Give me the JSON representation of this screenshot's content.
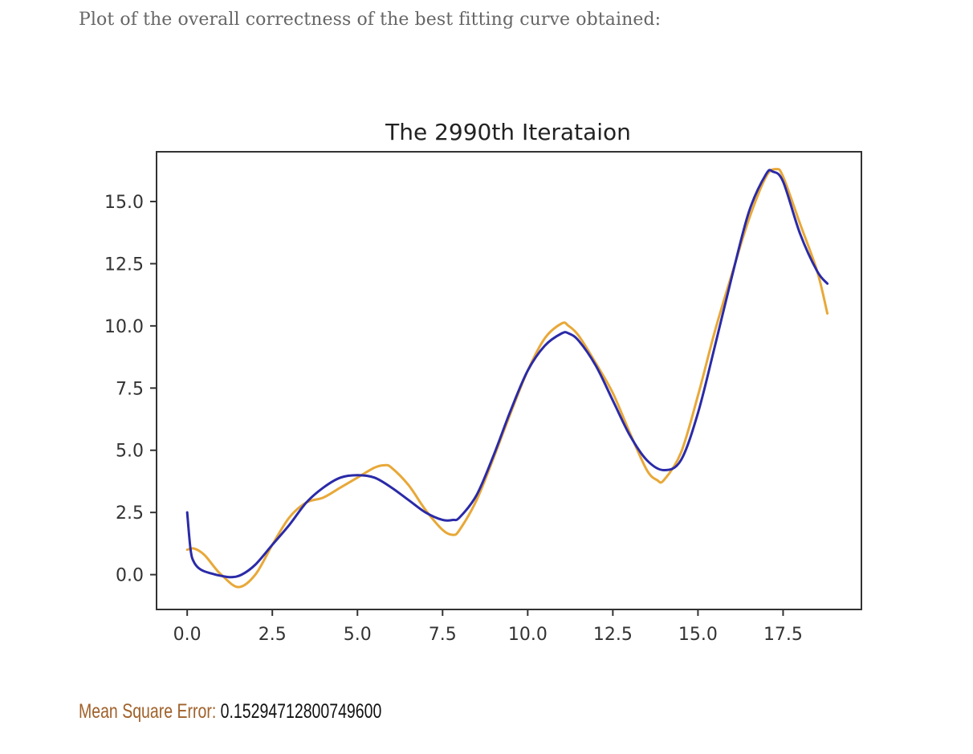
{
  "caption": "Plot of the overall correctness of the best fitting curve obtained:",
  "mse": {
    "label": "Mean Square Error:",
    "value": "0.15294712800749600"
  },
  "colors": {
    "target": "#e8a838",
    "fit": "#2a2aa8",
    "axis": "#333333",
    "mse_label": "#a0612a"
  },
  "chart_data": {
    "type": "line",
    "title": "The 2990th Iterataion",
    "xlabel": "",
    "ylabel": "",
    "xlim": [
      -0.9,
      19.8
    ],
    "ylim": [
      -1.4,
      17.0
    ],
    "grid": false,
    "x_ticks": [
      0.0,
      2.5,
      5.0,
      7.5,
      10.0,
      12.5,
      15.0,
      17.5
    ],
    "x_tick_labels": [
      "0.0",
      "2.5",
      "5.0",
      "7.5",
      "10.0",
      "12.5",
      "15.0",
      "17.5"
    ],
    "y_ticks": [
      0.0,
      2.5,
      5.0,
      7.5,
      10.0,
      12.5,
      15.0
    ],
    "y_tick_labels": [
      "0.0",
      "2.5",
      "5.0",
      "7.5",
      "10.0",
      "12.5",
      "15.0"
    ],
    "series": [
      {
        "key": "target",
        "x": [
          0.0,
          0.2,
          0.5,
          0.8,
          1.0,
          1.5,
          2.0,
          2.5,
          3.0,
          3.5,
          4.0,
          4.5,
          5.0,
          5.5,
          5.8,
          6.0,
          6.5,
          7.0,
          7.5,
          7.8,
          8.0,
          8.5,
          9.0,
          9.5,
          10.0,
          10.5,
          11.0,
          11.2,
          11.5,
          12.0,
          12.5,
          13.0,
          13.5,
          13.8,
          14.0,
          14.5,
          15.0,
          15.5,
          16.0,
          16.5,
          17.0,
          17.3,
          17.5,
          18.0,
          18.5,
          18.8
        ],
        "y": [
          1.0,
          1.05,
          0.8,
          0.3,
          0.0,
          -0.5,
          0.0,
          1.2,
          2.3,
          2.9,
          3.1,
          3.5,
          3.9,
          4.3,
          4.4,
          4.3,
          3.6,
          2.6,
          1.8,
          1.6,
          1.8,
          3.0,
          4.7,
          6.5,
          8.2,
          9.5,
          10.1,
          10.0,
          9.6,
          8.5,
          7.3,
          5.7,
          4.2,
          3.8,
          3.8,
          4.9,
          7.2,
          9.8,
          12.1,
          14.3,
          16.0,
          16.3,
          16.0,
          14.1,
          12.2,
          10.5
        ]
      },
      {
        "key": "fit",
        "x": [
          0.0,
          0.1,
          0.2,
          0.4,
          0.7,
          1.0,
          1.3,
          1.6,
          2.0,
          2.5,
          3.0,
          3.5,
          4.0,
          4.5,
          5.0,
          5.5,
          6.0,
          6.5,
          7.0,
          7.5,
          7.8,
          8.0,
          8.5,
          9.0,
          9.5,
          10.0,
          10.5,
          11.0,
          11.2,
          11.5,
          12.0,
          12.5,
          13.0,
          13.5,
          14.0,
          14.5,
          15.0,
          15.5,
          16.0,
          16.5,
          17.0,
          17.2,
          17.5,
          18.0,
          18.5,
          18.8
        ],
        "y": [
          2.5,
          1.0,
          0.5,
          0.2,
          0.05,
          -0.05,
          -0.1,
          0.0,
          0.4,
          1.2,
          2.0,
          2.9,
          3.5,
          3.9,
          4.0,
          3.9,
          3.5,
          3.0,
          2.5,
          2.2,
          2.2,
          2.3,
          3.2,
          4.8,
          6.6,
          8.2,
          9.2,
          9.7,
          9.7,
          9.4,
          8.4,
          7.0,
          5.6,
          4.6,
          4.2,
          4.6,
          6.5,
          9.2,
          12.0,
          14.6,
          16.1,
          16.2,
          15.8,
          13.7,
          12.2,
          11.7
        ]
      }
    ]
  }
}
